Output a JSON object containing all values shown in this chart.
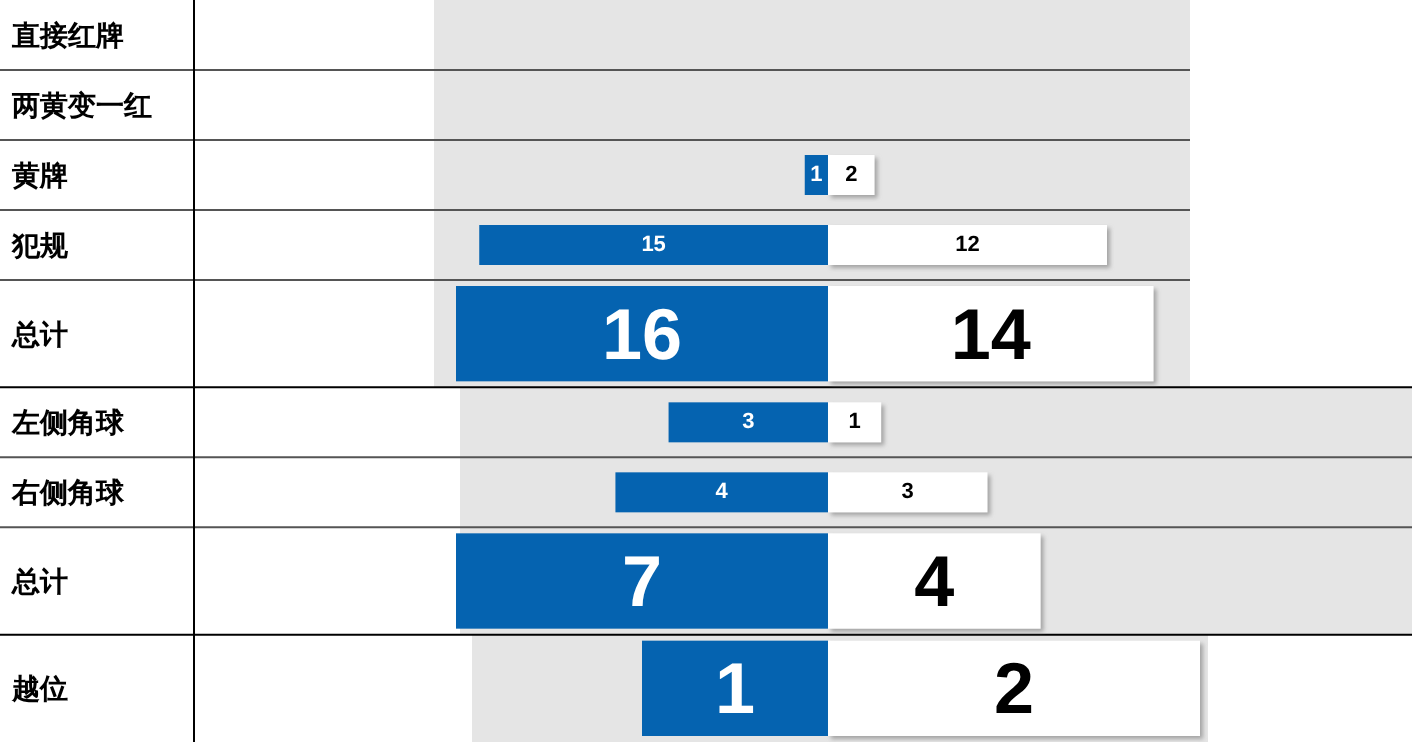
{
  "chart_data": [
    {
      "type": "bar",
      "orientation": "horizontal",
      "categories": [
        "直接红牌",
        "两黄变一红",
        "黄牌",
        "犯规",
        "总计"
      ],
      "series": [
        {
          "color": "#0563b0",
          "values": [
            null,
            null,
            1,
            15,
            16
          ]
        }
      ],
      "data_labels": true
    },
    {
      "type": "bar",
      "orientation": "horizontal",
      "categories": [
        null,
        null,
        null,
        null,
        null
      ],
      "tick_labels": false,
      "series": [
        {
          "color": "#ffffff",
          "values": [
            null,
            null,
            2,
            12,
            14
          ]
        }
      ],
      "data_labels": true
    },
    {
      "type": "bar",
      "orientation": "horizontal",
      "categories": [
        "左侧角球",
        "右侧角球",
        "总计"
      ],
      "series": [
        {
          "color": "#0563b0",
          "values": [
            3,
            4,
            7
          ]
        }
      ],
      "data_labels": true
    },
    {
      "type": "bar",
      "orientation": "horizontal",
      "categories": [
        null,
        null,
        null
      ],
      "tick_labels": false,
      "series": [
        {
          "color": "#ffffff",
          "values": [
            1,
            3,
            4
          ]
        }
      ],
      "data_labels": true
    },
    {
      "type": "bar",
      "orientation": "horizontal",
      "categories": [
        "越位"
      ],
      "series": [
        {
          "color": "#0563b0",
          "values": [
            1
          ]
        }
      ],
      "data_labels": true
    },
    {
      "type": "bar",
      "orientation": "horizontal",
      "categories": [
        null
      ],
      "tick_labels": false,
      "series": [
        {
          "color": "#ffffff",
          "values": [
            2
          ]
        }
      ],
      "data_labels": true
    }
  ]
}
